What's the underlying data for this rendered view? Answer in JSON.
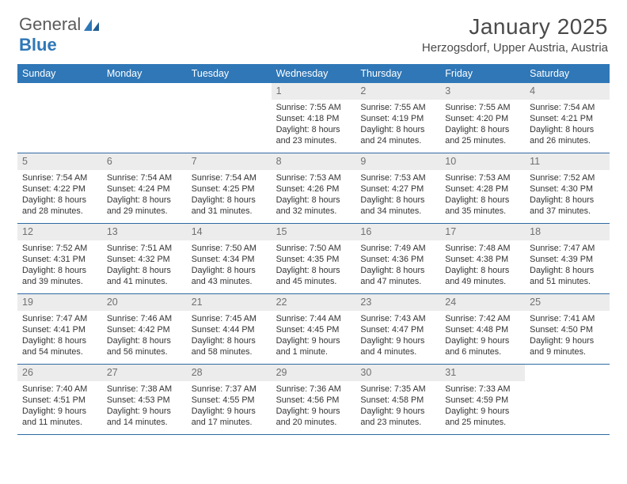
{
  "logo": {
    "text1": "General",
    "text2": "Blue"
  },
  "title": "January 2025",
  "location": "Herzogsdorf, Upper Austria, Austria",
  "colors": {
    "header_bg": "#2f77b7",
    "header_text": "#ffffff",
    "rule": "#2f6aa3",
    "daynum_bg": "#ececec",
    "daynum_text": "#707070",
    "body_text": "#333333"
  },
  "day_headers": [
    "Sunday",
    "Monday",
    "Tuesday",
    "Wednesday",
    "Thursday",
    "Friday",
    "Saturday"
  ],
  "weeks": [
    [
      {
        "empty": true
      },
      {
        "empty": true
      },
      {
        "empty": true
      },
      {
        "day": "1",
        "sunrise": "Sunrise: 7:55 AM",
        "sunset": "Sunset: 4:18 PM",
        "dl1": "Daylight: 8 hours",
        "dl2": "and 23 minutes."
      },
      {
        "day": "2",
        "sunrise": "Sunrise: 7:55 AM",
        "sunset": "Sunset: 4:19 PM",
        "dl1": "Daylight: 8 hours",
        "dl2": "and 24 minutes."
      },
      {
        "day": "3",
        "sunrise": "Sunrise: 7:55 AM",
        "sunset": "Sunset: 4:20 PM",
        "dl1": "Daylight: 8 hours",
        "dl2": "and 25 minutes."
      },
      {
        "day": "4",
        "sunrise": "Sunrise: 7:54 AM",
        "sunset": "Sunset: 4:21 PM",
        "dl1": "Daylight: 8 hours",
        "dl2": "and 26 minutes."
      }
    ],
    [
      {
        "day": "5",
        "sunrise": "Sunrise: 7:54 AM",
        "sunset": "Sunset: 4:22 PM",
        "dl1": "Daylight: 8 hours",
        "dl2": "and 28 minutes."
      },
      {
        "day": "6",
        "sunrise": "Sunrise: 7:54 AM",
        "sunset": "Sunset: 4:24 PM",
        "dl1": "Daylight: 8 hours",
        "dl2": "and 29 minutes."
      },
      {
        "day": "7",
        "sunrise": "Sunrise: 7:54 AM",
        "sunset": "Sunset: 4:25 PM",
        "dl1": "Daylight: 8 hours",
        "dl2": "and 31 minutes."
      },
      {
        "day": "8",
        "sunrise": "Sunrise: 7:53 AM",
        "sunset": "Sunset: 4:26 PM",
        "dl1": "Daylight: 8 hours",
        "dl2": "and 32 minutes."
      },
      {
        "day": "9",
        "sunrise": "Sunrise: 7:53 AM",
        "sunset": "Sunset: 4:27 PM",
        "dl1": "Daylight: 8 hours",
        "dl2": "and 34 minutes."
      },
      {
        "day": "10",
        "sunrise": "Sunrise: 7:53 AM",
        "sunset": "Sunset: 4:28 PM",
        "dl1": "Daylight: 8 hours",
        "dl2": "and 35 minutes."
      },
      {
        "day": "11",
        "sunrise": "Sunrise: 7:52 AM",
        "sunset": "Sunset: 4:30 PM",
        "dl1": "Daylight: 8 hours",
        "dl2": "and 37 minutes."
      }
    ],
    [
      {
        "day": "12",
        "sunrise": "Sunrise: 7:52 AM",
        "sunset": "Sunset: 4:31 PM",
        "dl1": "Daylight: 8 hours",
        "dl2": "and 39 minutes."
      },
      {
        "day": "13",
        "sunrise": "Sunrise: 7:51 AM",
        "sunset": "Sunset: 4:32 PM",
        "dl1": "Daylight: 8 hours",
        "dl2": "and 41 minutes."
      },
      {
        "day": "14",
        "sunrise": "Sunrise: 7:50 AM",
        "sunset": "Sunset: 4:34 PM",
        "dl1": "Daylight: 8 hours",
        "dl2": "and 43 minutes."
      },
      {
        "day": "15",
        "sunrise": "Sunrise: 7:50 AM",
        "sunset": "Sunset: 4:35 PM",
        "dl1": "Daylight: 8 hours",
        "dl2": "and 45 minutes."
      },
      {
        "day": "16",
        "sunrise": "Sunrise: 7:49 AM",
        "sunset": "Sunset: 4:36 PM",
        "dl1": "Daylight: 8 hours",
        "dl2": "and 47 minutes."
      },
      {
        "day": "17",
        "sunrise": "Sunrise: 7:48 AM",
        "sunset": "Sunset: 4:38 PM",
        "dl1": "Daylight: 8 hours",
        "dl2": "and 49 minutes."
      },
      {
        "day": "18",
        "sunrise": "Sunrise: 7:47 AM",
        "sunset": "Sunset: 4:39 PM",
        "dl1": "Daylight: 8 hours",
        "dl2": "and 51 minutes."
      }
    ],
    [
      {
        "day": "19",
        "sunrise": "Sunrise: 7:47 AM",
        "sunset": "Sunset: 4:41 PM",
        "dl1": "Daylight: 8 hours",
        "dl2": "and 54 minutes."
      },
      {
        "day": "20",
        "sunrise": "Sunrise: 7:46 AM",
        "sunset": "Sunset: 4:42 PM",
        "dl1": "Daylight: 8 hours",
        "dl2": "and 56 minutes."
      },
      {
        "day": "21",
        "sunrise": "Sunrise: 7:45 AM",
        "sunset": "Sunset: 4:44 PM",
        "dl1": "Daylight: 8 hours",
        "dl2": "and 58 minutes."
      },
      {
        "day": "22",
        "sunrise": "Sunrise: 7:44 AM",
        "sunset": "Sunset: 4:45 PM",
        "dl1": "Daylight: 9 hours",
        "dl2": "and 1 minute."
      },
      {
        "day": "23",
        "sunrise": "Sunrise: 7:43 AM",
        "sunset": "Sunset: 4:47 PM",
        "dl1": "Daylight: 9 hours",
        "dl2": "and 4 minutes."
      },
      {
        "day": "24",
        "sunrise": "Sunrise: 7:42 AM",
        "sunset": "Sunset: 4:48 PM",
        "dl1": "Daylight: 9 hours",
        "dl2": "and 6 minutes."
      },
      {
        "day": "25",
        "sunrise": "Sunrise: 7:41 AM",
        "sunset": "Sunset: 4:50 PM",
        "dl1": "Daylight: 9 hours",
        "dl2": "and 9 minutes."
      }
    ],
    [
      {
        "day": "26",
        "sunrise": "Sunrise: 7:40 AM",
        "sunset": "Sunset: 4:51 PM",
        "dl1": "Daylight: 9 hours",
        "dl2": "and 11 minutes."
      },
      {
        "day": "27",
        "sunrise": "Sunrise: 7:38 AM",
        "sunset": "Sunset: 4:53 PM",
        "dl1": "Daylight: 9 hours",
        "dl2": "and 14 minutes."
      },
      {
        "day": "28",
        "sunrise": "Sunrise: 7:37 AM",
        "sunset": "Sunset: 4:55 PM",
        "dl1": "Daylight: 9 hours",
        "dl2": "and 17 minutes."
      },
      {
        "day": "29",
        "sunrise": "Sunrise: 7:36 AM",
        "sunset": "Sunset: 4:56 PM",
        "dl1": "Daylight: 9 hours",
        "dl2": "and 20 minutes."
      },
      {
        "day": "30",
        "sunrise": "Sunrise: 7:35 AM",
        "sunset": "Sunset: 4:58 PM",
        "dl1": "Daylight: 9 hours",
        "dl2": "and 23 minutes."
      },
      {
        "day": "31",
        "sunrise": "Sunrise: 7:33 AM",
        "sunset": "Sunset: 4:59 PM",
        "dl1": "Daylight: 9 hours",
        "dl2": "and 25 minutes."
      },
      {
        "empty": true
      }
    ]
  ]
}
